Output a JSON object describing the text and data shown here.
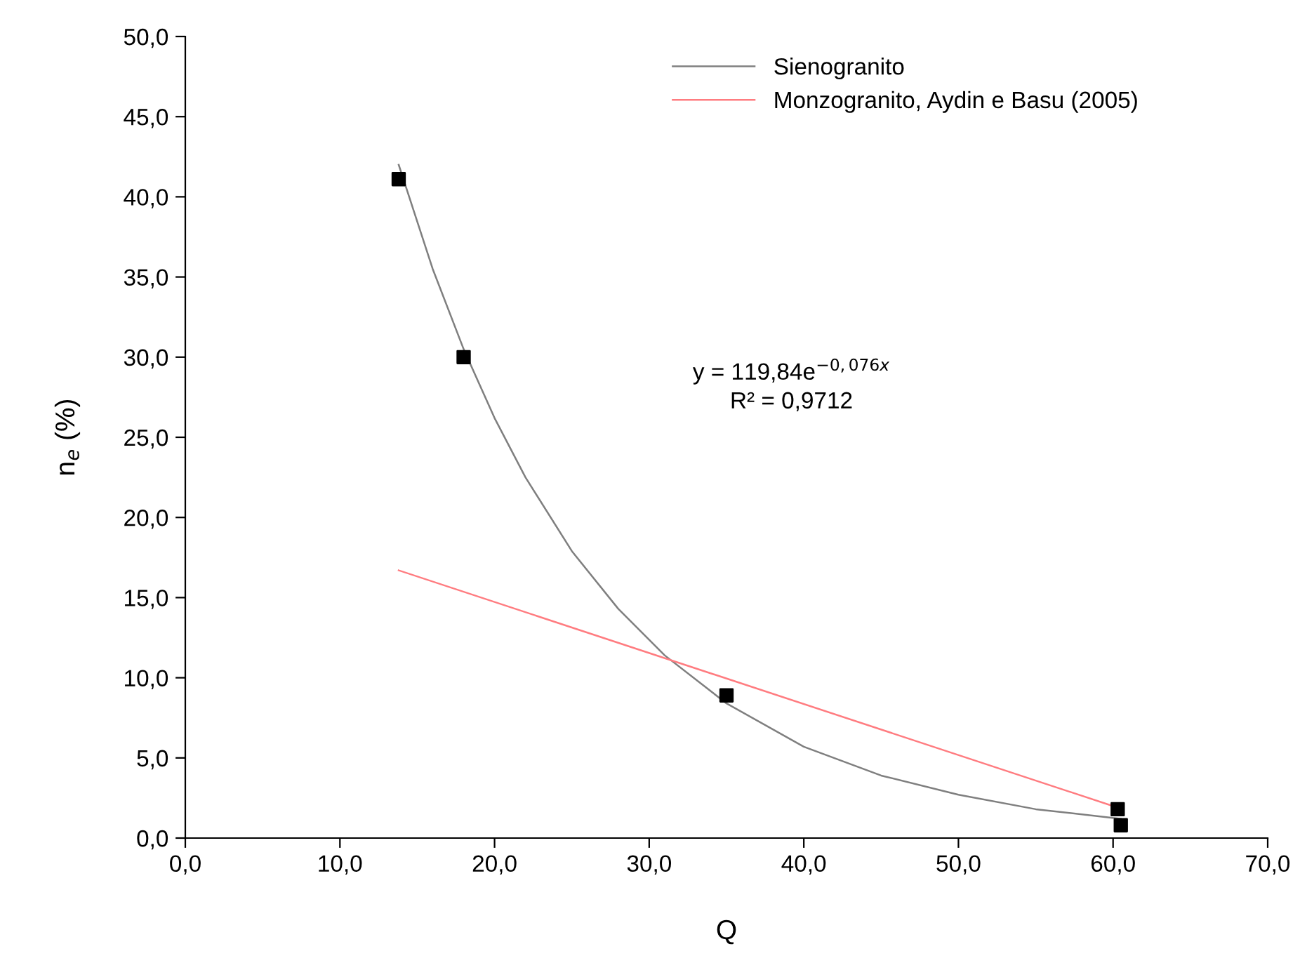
{
  "chart_data": {
    "type": "scatter",
    "xlabel": "Q",
    "ylabel": "n$_{e}$ (%)",
    "xlim": [
      0,
      70
    ],
    "ylim": [
      0,
      50
    ],
    "xticks": [
      {
        "value": 0,
        "label": "0,0"
      },
      {
        "value": 10,
        "label": "10,0"
      },
      {
        "value": 20,
        "label": "20,0"
      },
      {
        "value": 30,
        "label": "30,0"
      },
      {
        "value": 40,
        "label": "40,0"
      },
      {
        "value": 50,
        "label": "50,0"
      },
      {
        "value": 60,
        "label": "60,0"
      },
      {
        "value": 70,
        "label": "70,0"
      }
    ],
    "yticks": [
      {
        "value": 0,
        "label": "0,0"
      },
      {
        "value": 5,
        "label": "5,0"
      },
      {
        "value": 10,
        "label": "10,0"
      },
      {
        "value": 15,
        "label": "15,0"
      },
      {
        "value": 20,
        "label": "20,0"
      },
      {
        "value": 25,
        "label": "25,0"
      },
      {
        "value": 30,
        "label": "30,0"
      },
      {
        "value": 35,
        "label": "35,0"
      },
      {
        "value": 40,
        "label": "40,0"
      },
      {
        "value": 45,
        "label": "45,0"
      },
      {
        "value": 50,
        "label": "50,0"
      }
    ],
    "grid": false,
    "legend": "top right",
    "annotations": [
      "y = 119,84e$^{−0,076x}$\nR² = 0,9712"
    ],
    "series": [
      {
        "color": "#000000",
        "marker": "square",
        "x": [
          13.8,
          18.0,
          35.0,
          60.3,
          60.5
        ],
        "values": [
          41.1,
          30.0,
          8.9,
          1.8,
          0.8
        ]
      },
      {
        "type": "line",
        "name": "Sienogranito",
        "color": "#7f7f7f",
        "marker": "none",
        "line_style": "solid",
        "x": [
          13.8,
          16,
          18,
          20,
          22,
          25,
          28,
          31,
          35,
          40,
          45,
          50,
          55,
          60.5
        ],
        "values": [
          42.0,
          35.5,
          30.5,
          26.2,
          22.5,
          17.9,
          14.3,
          11.4,
          8.4,
          5.7,
          3.9,
          2.7,
          1.8,
          1.2
        ]
      },
      {
        "type": "line",
        "name": "Monzogranito, Aydin e Basu (2005)",
        "color": "#ff7c80",
        "marker": "none",
        "line_style": "solid",
        "x": [
          13.8,
          60.3
        ],
        "values": [
          16.7,
          1.9
        ]
      }
    ]
  }
}
